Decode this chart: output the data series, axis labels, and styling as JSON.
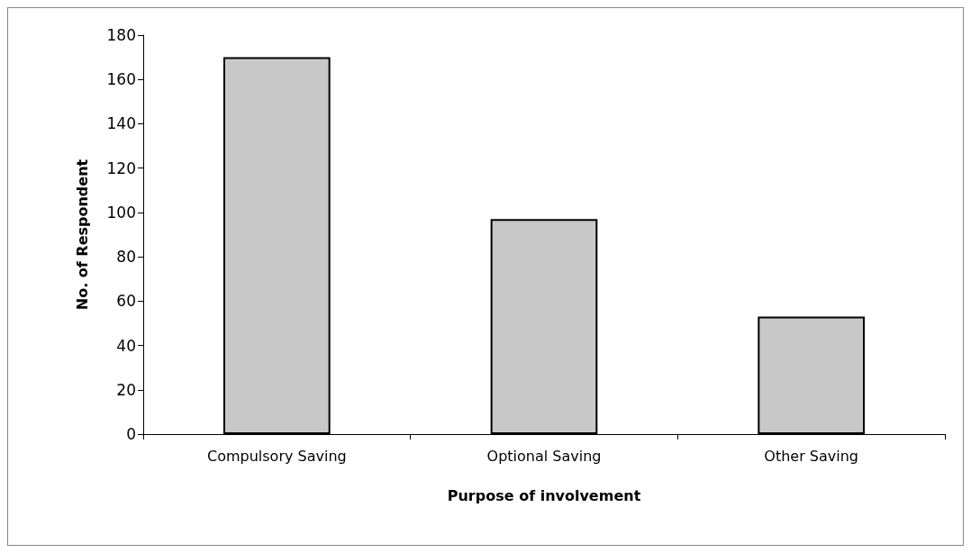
{
  "chart_data": {
    "type": "bar",
    "xlabel": "Purpose of involvement",
    "ylabel": "No. of Respondent",
    "categories": [
      "Compulsory Saving",
      "Optional Saving",
      "Other Saving"
    ],
    "values": [
      170,
      97,
      53
    ],
    "color": "#c8c8c8",
    "ylim": [
      0,
      180
    ],
    "yticks": [
      0,
      20,
      40,
      60,
      80,
      100,
      120,
      140,
      160,
      180
    ]
  }
}
